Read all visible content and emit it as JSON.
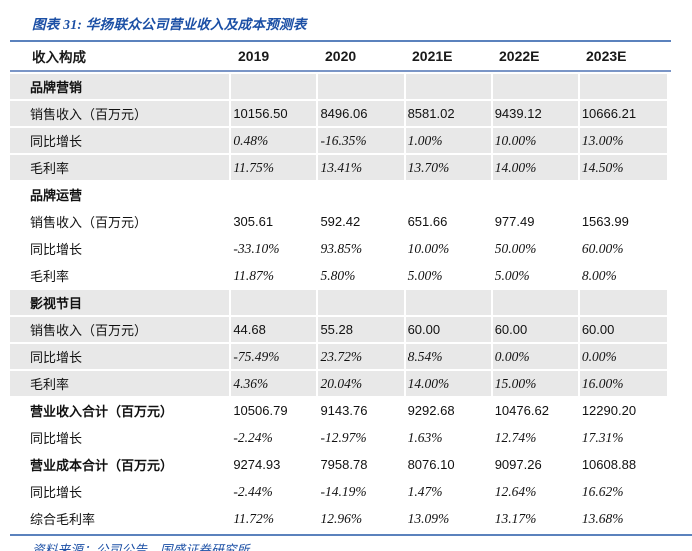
{
  "title": "图表 31: 华扬联众公司营业收入及成本预测表",
  "footer": "资料来源：公司公告，国盛证券研究所",
  "colors": {
    "accent_blue": "#1b4fa5",
    "rule_blue": "#5b82bd",
    "row_shade": "#e8e8e8"
  },
  "table": {
    "header": [
      "收入构成",
      "2019",
      "2020",
      "2021E",
      "2022E",
      "2023E"
    ],
    "rows": [
      {
        "label": "品牌营销",
        "cells": [
          "",
          "",
          "",
          "",
          ""
        ],
        "style": "section",
        "shaded": true
      },
      {
        "label": "销售收入（百万元）",
        "cells": [
          "10156.50",
          "8496.06",
          "8581.02",
          "9439.12",
          "10666.21"
        ],
        "style": "number",
        "shaded": true
      },
      {
        "label": "同比增长",
        "cells": [
          "0.48%",
          "-16.35%",
          "1.00%",
          "10.00%",
          "13.00%"
        ],
        "style": "percent",
        "shaded": true
      },
      {
        "label": "毛利率",
        "cells": [
          "11.75%",
          "13.41%",
          "13.70%",
          "14.00%",
          "14.50%"
        ],
        "style": "percent",
        "shaded": true
      },
      {
        "label": "品牌运营",
        "cells": [
          "",
          "",
          "",
          "",
          ""
        ],
        "style": "section",
        "shaded": false
      },
      {
        "label": "销售收入（百万元）",
        "cells": [
          "305.61",
          "592.42",
          "651.66",
          "977.49",
          "1563.99"
        ],
        "style": "number",
        "shaded": false
      },
      {
        "label": "同比增长",
        "cells": [
          "-33.10%",
          "93.85%",
          "10.00%",
          "50.00%",
          "60.00%"
        ],
        "style": "percent",
        "shaded": false
      },
      {
        "label": "毛利率",
        "cells": [
          "11.87%",
          "5.80%",
          "5.00%",
          "5.00%",
          "8.00%"
        ],
        "style": "percent",
        "shaded": false
      },
      {
        "label": "影视节目",
        "cells": [
          "",
          "",
          "",
          "",
          ""
        ],
        "style": "section",
        "shaded": true
      },
      {
        "label": "销售收入（百万元）",
        "cells": [
          "44.68",
          "55.28",
          "60.00",
          "60.00",
          "60.00"
        ],
        "style": "number",
        "shaded": true
      },
      {
        "label": "同比增长",
        "cells": [
          "-75.49%",
          "23.72%",
          "8.54%",
          "0.00%",
          "0.00%"
        ],
        "style": "percent",
        "shaded": true
      },
      {
        "label": "毛利率",
        "cells": [
          "4.36%",
          "20.04%",
          "14.00%",
          "15.00%",
          "16.00%"
        ],
        "style": "percent",
        "shaded": true
      },
      {
        "label": "营业收入合计（百万元）",
        "cells": [
          "10506.79",
          "9143.76",
          "9292.68",
          "10476.62",
          "12290.20"
        ],
        "style": "total",
        "shaded": false
      },
      {
        "label": "同比增长",
        "cells": [
          "-2.24%",
          "-12.97%",
          "1.63%",
          "12.74%",
          "17.31%"
        ],
        "style": "percent",
        "shaded": false
      },
      {
        "label": "营业成本合计（百万元）",
        "cells": [
          "9274.93",
          "7958.78",
          "8076.10",
          "9097.26",
          "10608.88"
        ],
        "style": "total",
        "shaded": false
      },
      {
        "label": "同比增长",
        "cells": [
          "-2.44%",
          "-14.19%",
          "1.47%",
          "12.64%",
          "16.62%"
        ],
        "style": "percent",
        "shaded": false
      },
      {
        "label": "综合毛利率",
        "cells": [
          "11.72%",
          "12.96%",
          "13.09%",
          "13.17%",
          "13.68%"
        ],
        "style": "percent",
        "shaded": false
      }
    ]
  }
}
